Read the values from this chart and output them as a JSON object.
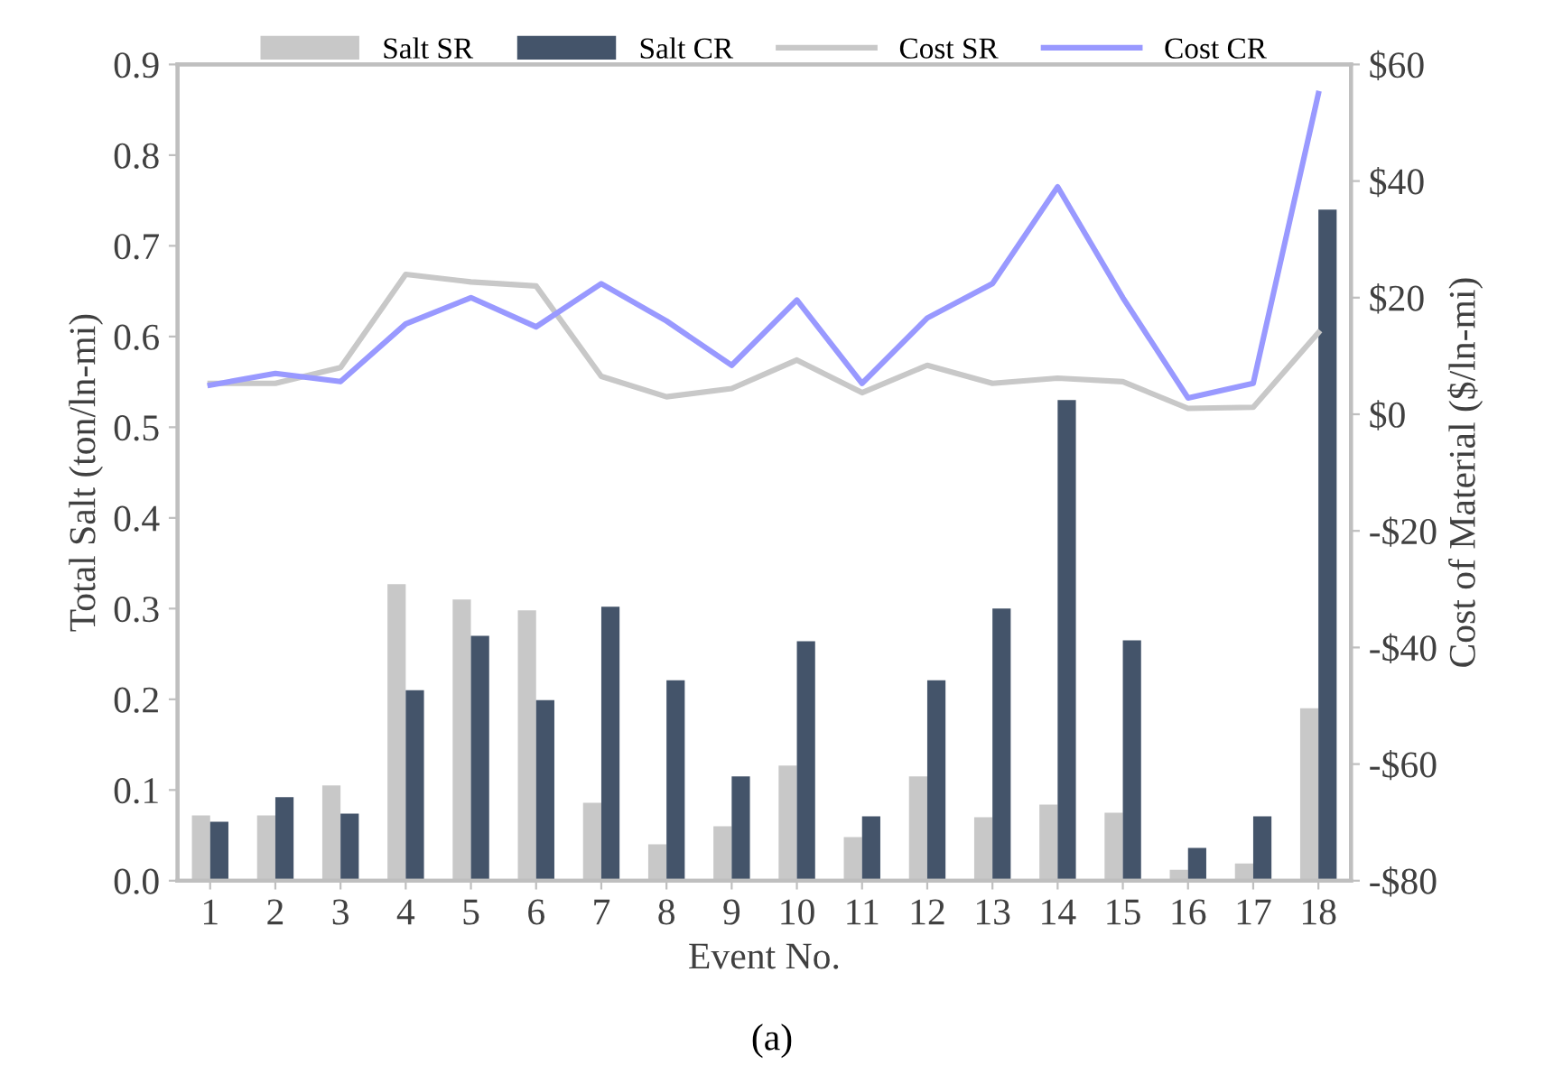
{
  "chart_data": {
    "type": "bar",
    "xlabel": "Event No.",
    "ylabel": "Total Salt (ton/ln-mi)",
    "y2label": "Cost of Material ($/ln-mi)",
    "categories": [
      "1",
      "2",
      "3",
      "4",
      "5",
      "6",
      "7",
      "8",
      "9",
      "10",
      "11",
      "12",
      "13",
      "14",
      "15",
      "16",
      "17",
      "18"
    ],
    "series": [
      {
        "name": "Salt SR",
        "color": "#c8c8c8",
        "values": [
          0.072,
          0.072,
          0.105,
          0.327,
          0.31,
          0.298,
          0.086,
          0.04,
          0.06,
          0.127,
          0.048,
          0.115,
          0.07,
          0.084,
          0.075,
          0.012,
          0.019,
          0.19
        ]
      },
      {
        "name": "Salt CR",
        "color": "#44546a",
        "values": [
          0.065,
          0.092,
          0.074,
          0.21,
          0.27,
          0.199,
          0.302,
          0.221,
          0.115,
          0.264,
          0.071,
          0.221,
          0.3,
          0.53,
          0.265,
          0.036,
          0.071,
          0.74
        ]
      },
      {
        "name": "Cost SR",
        "type": "line",
        "axis": "y2",
        "color": "#c8c8c8",
        "values": [
          5.3,
          5.3,
          8,
          24,
          22.7,
          22,
          6.5,
          3,
          4.4,
          9.3,
          3.7,
          8.4,
          5.3,
          6.2,
          5.6,
          1,
          1.2,
          14
        ]
      },
      {
        "name": "Cost CR",
        "type": "line",
        "axis": "y2",
        "color": "#9999ff",
        "values": [
          5,
          7,
          5.6,
          15.5,
          20,
          15,
          22.4,
          16,
          8.4,
          19.6,
          5.3,
          16.5,
          22.4,
          39,
          20,
          2.8,
          5.3,
          55
        ]
      }
    ],
    "ylim": [
      0,
      0.9
    ],
    "yticks": [
      {
        "value": 0,
        "label": "0.0"
      },
      {
        "value": 0.1,
        "label": "0.1"
      },
      {
        "value": 0.2,
        "label": "0.2"
      },
      {
        "value": 0.3,
        "label": "0.3"
      },
      {
        "value": 0.4,
        "label": "0.4"
      },
      {
        "value": 0.5,
        "label": "0.5"
      },
      {
        "value": 0.6,
        "label": "0.6"
      },
      {
        "value": 0.7,
        "label": "0.7"
      },
      {
        "value": 0.8,
        "label": "0.8"
      },
      {
        "value": 0.9,
        "label": "0.9"
      }
    ],
    "y2lim": [
      -80,
      60
    ],
    "y2ticks": [
      {
        "value": -80,
        "label": "-$80"
      },
      {
        "value": -60,
        "label": "-$60"
      },
      {
        "value": -40,
        "label": "-$40"
      },
      {
        "value": -20,
        "label": "-$20"
      },
      {
        "value": 0,
        "label": "$0"
      },
      {
        "value": 20,
        "label": "$20"
      },
      {
        "value": 40,
        "label": "$40"
      },
      {
        "value": 60,
        "label": "$60"
      }
    ],
    "legend": "top",
    "grid": false,
    "annotations": [
      "(a)"
    ]
  }
}
